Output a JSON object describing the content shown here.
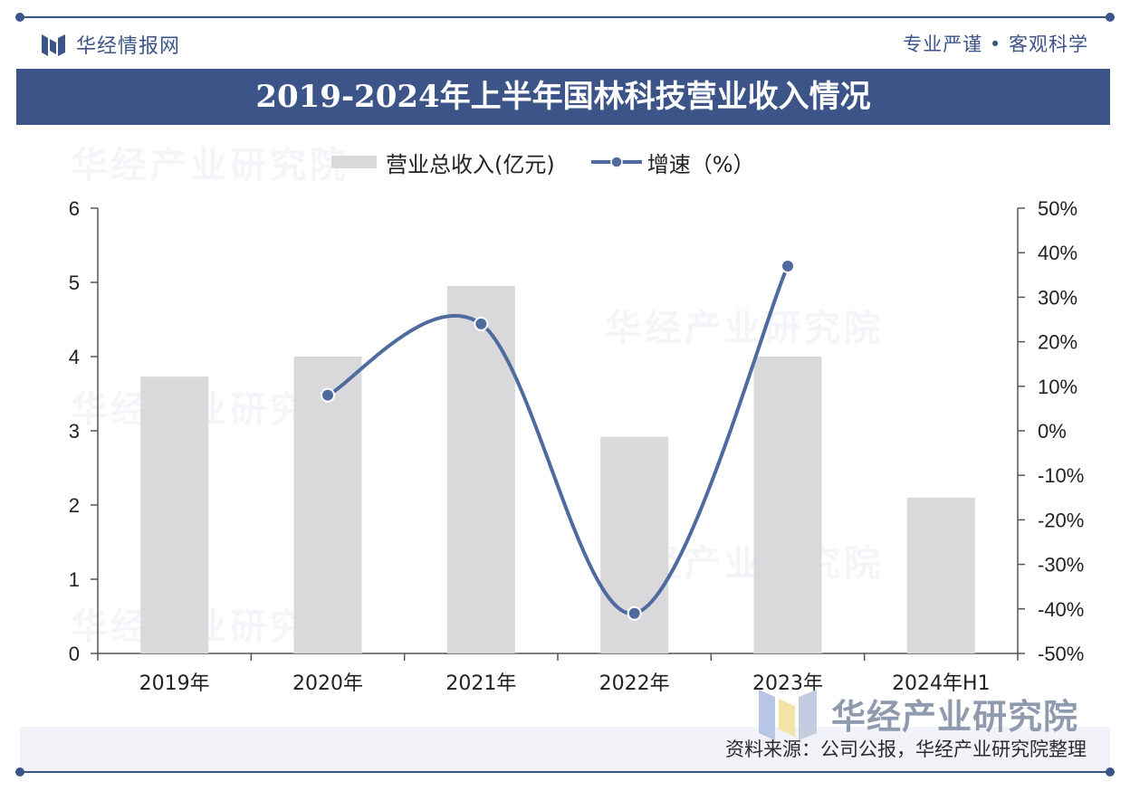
{
  "header": {
    "brand_name": "华经情报网",
    "slogan": "专业严谨 • 客观科学",
    "title": "2019-2024年上半年国林科技营业收入情况"
  },
  "legend": {
    "bar_label": "营业总收入(亿元)",
    "line_label": "增速（%）"
  },
  "footer": {
    "source": "资料来源：公司公报，华经产业研究院整理",
    "watermark_brand": "华经产业研究院"
  },
  "colors": {
    "bar": "#d9d9db",
    "line": "#4f6a9e",
    "brand": "#3c5488"
  },
  "chart_data": {
    "type": "bar",
    "title": "2019-2024年上半年国林科技营业收入情况",
    "categories": [
      "2019年",
      "2020年",
      "2021年",
      "2022年",
      "2023年",
      "2024年H1"
    ],
    "series": [
      {
        "name": "营业总收入(亿元)",
        "type": "bar",
        "axis": "left",
        "values": [
          3.73,
          4.0,
          4.95,
          2.92,
          4.0,
          2.1
        ]
      },
      {
        "name": "增速（%）",
        "type": "line",
        "axis": "right",
        "values": [
          null,
          8,
          24,
          -41,
          37,
          null
        ]
      }
    ],
    "y_left": {
      "ylim": [
        0,
        6
      ],
      "ticks": [
        "0",
        "1",
        "2",
        "3",
        "4",
        "5",
        "6"
      ]
    },
    "y_right": {
      "ylim": [
        -50,
        50
      ],
      "ticks": [
        "-50%",
        "-40%",
        "-30%",
        "-20%",
        "-10%",
        "0%",
        "10%",
        "20%",
        "30%",
        "40%",
        "50%"
      ]
    },
    "legend_position": "top"
  }
}
